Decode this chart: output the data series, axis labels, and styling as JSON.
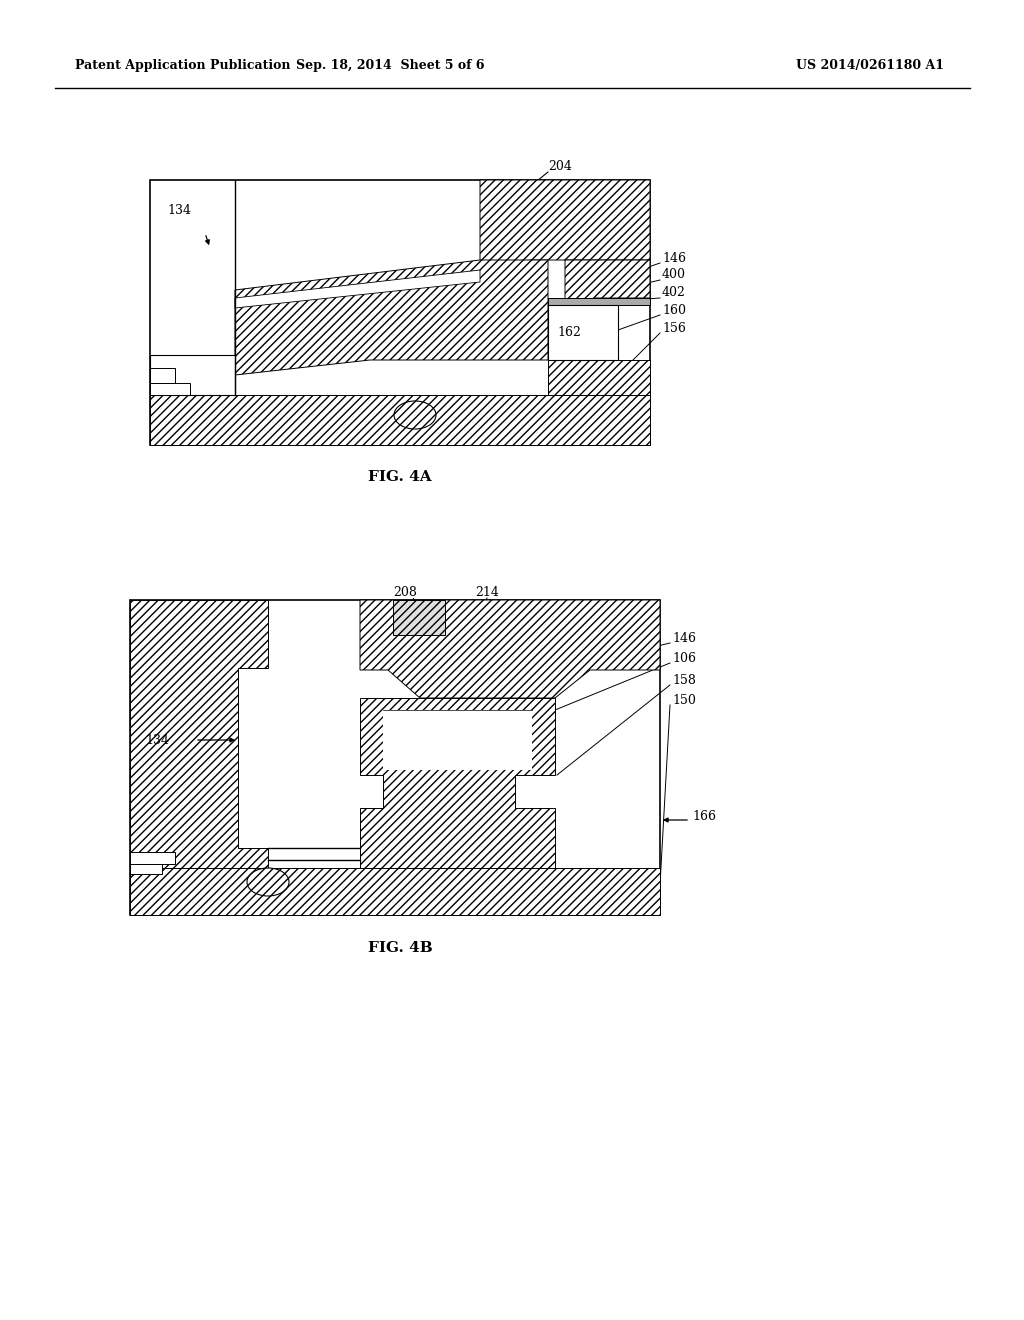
{
  "bg_color": "#ffffff",
  "header_left": "Patent Application Publication",
  "header_center": "Sep. 18, 2014  Sheet 5 of 6",
  "header_right": "US 2014/0261180 A1",
  "fig4a_label": "FIG. 4A",
  "fig4b_label": "FIG. 4B",
  "line_color": "#000000",
  "fig_width": 10.24,
  "fig_height": 13.2
}
